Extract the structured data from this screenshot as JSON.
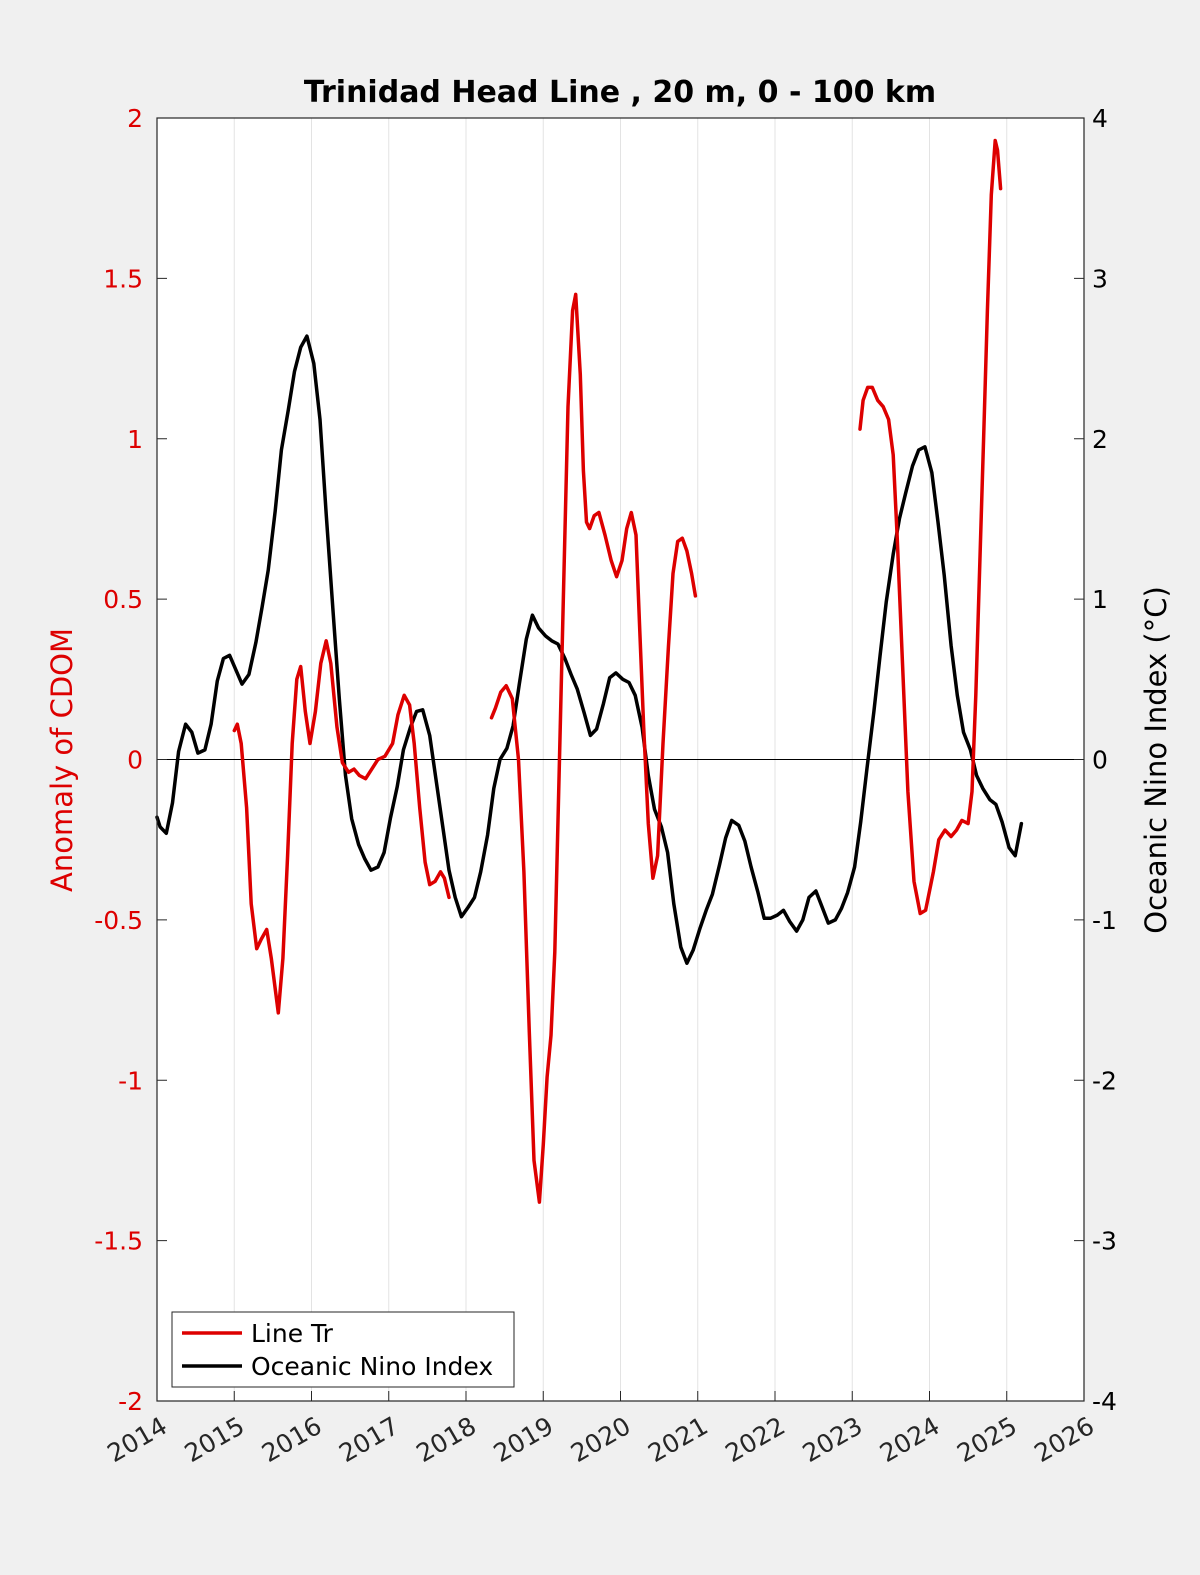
{
  "chart_data": {
    "type": "line",
    "title": "Trinidad Head Line , 20 m, 0 - 100 km",
    "xlim": [
      2014,
      2026
    ],
    "x_ticks": [
      "2014",
      "2015",
      "2016",
      "2017",
      "2018",
      "2019",
      "2020",
      "2021",
      "2022",
      "2023",
      "2024",
      "2025",
      "2026"
    ],
    "y_left": {
      "label": "Anomaly of CDOM",
      "lim": [
        -2,
        2
      ],
      "ticks": [
        "-2",
        "-1.5",
        "-1",
        "-0.5",
        "0",
        "0.5",
        "1",
        "1.5",
        "2"
      ],
      "color": "#dd0000"
    },
    "y_right": {
      "label": "Oceanic Nino Index (°C)",
      "lim": [
        -4,
        4
      ],
      "ticks": [
        "-4",
        "-3",
        "-2",
        "-1",
        "0",
        "1",
        "2",
        "3",
        "4"
      ],
      "color": "#000000"
    },
    "grid": "vertical",
    "zero_line": true,
    "legend_position": "bottom-left",
    "series": [
      {
        "name": "Line Tr",
        "axis": "left",
        "color": "#dd0000",
        "segments": [
          [
            [
              2015.0,
              0.09
            ],
            [
              2015.04,
              0.11
            ],
            [
              2015.09,
              0.05
            ],
            [
              2015.16,
              -0.15
            ],
            [
              2015.22,
              -0.45
            ],
            [
              2015.29,
              -0.59
            ],
            [
              2015.35,
              -0.56
            ],
            [
              2015.42,
              -0.53
            ],
            [
              2015.48,
              -0.62
            ],
            [
              2015.57,
              -0.79
            ],
            [
              2015.63,
              -0.62
            ],
            [
              2015.69,
              -0.3
            ],
            [
              2015.75,
              0.05
            ],
            [
              2015.81,
              0.25
            ],
            [
              2015.86,
              0.29
            ],
            [
              2015.92,
              0.15
            ],
            [
              2015.98,
              0.05
            ],
            [
              2016.05,
              0.15
            ],
            [
              2016.12,
              0.3
            ],
            [
              2016.19,
              0.37
            ],
            [
              2016.25,
              0.3
            ],
            [
              2016.33,
              0.1
            ],
            [
              2016.4,
              -0.01
            ],
            [
              2016.48,
              -0.04
            ],
            [
              2016.55,
              -0.03
            ],
            [
              2016.62,
              -0.05
            ],
            [
              2016.7,
              -0.06
            ],
            [
              2016.78,
              -0.03
            ],
            [
              2016.86,
              0.0
            ],
            [
              2016.95,
              0.01
            ],
            [
              2017.05,
              0.05
            ],
            [
              2017.12,
              0.14
            ],
            [
              2017.2,
              0.2
            ],
            [
              2017.27,
              0.17
            ],
            [
              2017.33,
              0.05
            ],
            [
              2017.4,
              -0.15
            ],
            [
              2017.47,
              -0.32
            ],
            [
              2017.53,
              -0.39
            ],
            [
              2017.6,
              -0.38
            ],
            [
              2017.67,
              -0.35
            ],
            [
              2017.72,
              -0.37
            ],
            [
              2017.78,
              -0.43
            ]
          ],
          [
            [
              2018.33,
              0.13
            ],
            [
              2018.38,
              0.16
            ],
            [
              2018.45,
              0.21
            ],
            [
              2018.52,
              0.23
            ],
            [
              2018.6,
              0.19
            ],
            [
              2018.68,
              0.0
            ],
            [
              2018.75,
              -0.35
            ],
            [
              2018.82,
              -0.85
            ],
            [
              2018.88,
              -1.25
            ],
            [
              2018.95,
              -1.38
            ],
            [
              2019.0,
              -1.2
            ],
            [
              2019.05,
              -0.99
            ],
            [
              2019.1,
              -0.86
            ],
            [
              2019.15,
              -0.6
            ],
            [
              2019.2,
              -0.1
            ],
            [
              2019.27,
              0.6
            ],
            [
              2019.32,
              1.1
            ],
            [
              2019.38,
              1.4
            ],
            [
              2019.42,
              1.45
            ],
            [
              2019.48,
              1.2
            ],
            [
              2019.52,
              0.9
            ],
            [
              2019.56,
              0.74
            ],
            [
              2019.6,
              0.72
            ],
            [
              2019.66,
              0.76
            ],
            [
              2019.72,
              0.77
            ],
            [
              2019.8,
              0.7
            ],
            [
              2019.88,
              0.62
            ],
            [
              2019.95,
              0.57
            ],
            [
              2020.02,
              0.62
            ],
            [
              2020.08,
              0.72
            ],
            [
              2020.14,
              0.77
            ],
            [
              2020.2,
              0.7
            ],
            [
              2020.25,
              0.4
            ],
            [
              2020.3,
              0.1
            ],
            [
              2020.36,
              -0.2
            ],
            [
              2020.42,
              -0.37
            ],
            [
              2020.48,
              -0.3
            ],
            [
              2020.55,
              0.05
            ],
            [
              2020.62,
              0.35
            ],
            [
              2020.68,
              0.58
            ],
            [
              2020.74,
              0.68
            ],
            [
              2020.8,
              0.69
            ],
            [
              2020.86,
              0.65
            ],
            [
              2020.92,
              0.58
            ],
            [
              2020.97,
              0.51
            ]
          ],
          [
            [
              2023.1,
              1.03
            ],
            [
              2023.14,
              1.12
            ],
            [
              2023.2,
              1.16
            ],
            [
              2023.26,
              1.16
            ],
            [
              2023.33,
              1.12
            ],
            [
              2023.4,
              1.1
            ],
            [
              2023.47,
              1.06
            ],
            [
              2023.53,
              0.95
            ],
            [
              2023.58,
              0.7
            ],
            [
              2023.65,
              0.3
            ],
            [
              2023.72,
              -0.1
            ],
            [
              2023.8,
              -0.38
            ],
            [
              2023.88,
              -0.48
            ],
            [
              2023.95,
              -0.47
            ],
            [
              2024.05,
              -0.35
            ],
            [
              2024.12,
              -0.25
            ],
            [
              2024.2,
              -0.22
            ],
            [
              2024.28,
              -0.24
            ],
            [
              2024.35,
              -0.22
            ],
            [
              2024.42,
              -0.19
            ],
            [
              2024.5,
              -0.2
            ],
            [
              2024.55,
              -0.1
            ],
            [
              2024.6,
              0.2
            ],
            [
              2024.65,
              0.6
            ],
            [
              2024.7,
              1.0
            ],
            [
              2024.75,
              1.4
            ],
            [
              2024.8,
              1.76
            ],
            [
              2024.85,
              1.93
            ],
            [
              2024.88,
              1.9
            ],
            [
              2024.92,
              1.78
            ]
          ]
        ]
      },
      {
        "name": "Oceanic Nino Index",
        "axis": "right",
        "color": "#000000",
        "segments": [
          [
            [
              2014.0,
              -0.36
            ],
            [
              2014.04,
              -0.42
            ],
            [
              2014.12,
              -0.46
            ],
            [
              2014.2,
              -0.27
            ],
            [
              2014.28,
              0.05
            ],
            [
              2014.37,
              0.22
            ],
            [
              2014.45,
              0.17
            ],
            [
              2014.53,
              0.04
            ],
            [
              2014.62,
              0.06
            ],
            [
              2014.7,
              0.22
            ],
            [
              2014.78,
              0.49
            ],
            [
              2014.86,
              0.63
            ],
            [
              2014.94,
              0.65
            ],
            [
              2015.02,
              0.56
            ],
            [
              2015.1,
              0.47
            ],
            [
              2015.19,
              0.53
            ],
            [
              2015.28,
              0.73
            ],
            [
              2015.36,
              0.95
            ],
            [
              2015.44,
              1.18
            ],
            [
              2015.53,
              1.55
            ],
            [
              2015.61,
              1.93
            ],
            [
              2015.7,
              2.18
            ],
            [
              2015.78,
              2.42
            ],
            [
              2015.86,
              2.57
            ],
            [
              2015.94,
              2.64
            ],
            [
              2016.03,
              2.47
            ],
            [
              2016.11,
              2.12
            ],
            [
              2016.19,
              1.53
            ],
            [
              2016.28,
              0.92
            ],
            [
              2016.36,
              0.38
            ],
            [
              2016.44,
              -0.1
            ],
            [
              2016.52,
              -0.37
            ],
            [
              2016.61,
              -0.53
            ],
            [
              2016.69,
              -0.62
            ],
            [
              2016.77,
              -0.69
            ],
            [
              2016.86,
              -0.67
            ],
            [
              2016.94,
              -0.58
            ],
            [
              2017.02,
              -0.37
            ],
            [
              2017.11,
              -0.17
            ],
            [
              2017.19,
              0.06
            ],
            [
              2017.28,
              0.2
            ],
            [
              2017.36,
              0.3
            ],
            [
              2017.44,
              0.31
            ],
            [
              2017.53,
              0.15
            ],
            [
              2017.61,
              -0.12
            ],
            [
              2017.7,
              -0.42
            ],
            [
              2017.78,
              -0.69
            ],
            [
              2017.86,
              -0.86
            ],
            [
              2017.94,
              -0.98
            ],
            [
              2018.03,
              -0.92
            ],
            [
              2018.11,
              -0.86
            ],
            [
              2018.19,
              -0.7
            ],
            [
              2018.28,
              -0.47
            ],
            [
              2018.36,
              -0.18
            ],
            [
              2018.44,
              0.0
            ],
            [
              2018.53,
              0.07
            ],
            [
              2018.61,
              0.21
            ],
            [
              2018.69,
              0.47
            ],
            [
              2018.78,
              0.75
            ],
            [
              2018.86,
              0.9
            ],
            [
              2018.94,
              0.82
            ],
            [
              2019.03,
              0.77
            ],
            [
              2019.11,
              0.74
            ],
            [
              2019.19,
              0.72
            ],
            [
              2019.28,
              0.63
            ],
            [
              2019.36,
              0.53
            ],
            [
              2019.44,
              0.44
            ],
            [
              2019.53,
              0.29
            ],
            [
              2019.61,
              0.15
            ],
            [
              2019.69,
              0.19
            ],
            [
              2019.78,
              0.35
            ],
            [
              2019.86,
              0.51
            ],
            [
              2019.94,
              0.54
            ],
            [
              2020.03,
              0.5
            ],
            [
              2020.11,
              0.48
            ],
            [
              2020.19,
              0.4
            ],
            [
              2020.28,
              0.2
            ],
            [
              2020.36,
              -0.1
            ],
            [
              2020.44,
              -0.31
            ],
            [
              2020.53,
              -0.42
            ],
            [
              2020.61,
              -0.58
            ],
            [
              2020.69,
              -0.9
            ],
            [
              2020.78,
              -1.17
            ],
            [
              2020.86,
              -1.27
            ],
            [
              2020.94,
              -1.19
            ],
            [
              2021.03,
              -1.05
            ],
            [
              2021.11,
              -0.94
            ],
            [
              2021.19,
              -0.84
            ],
            [
              2021.28,
              -0.66
            ],
            [
              2021.36,
              -0.49
            ],
            [
              2021.44,
              -0.38
            ],
            [
              2021.53,
              -0.41
            ],
            [
              2021.61,
              -0.51
            ],
            [
              2021.69,
              -0.67
            ],
            [
              2021.78,
              -0.83
            ],
            [
              2021.86,
              -0.99
            ],
            [
              2021.94,
              -0.99
            ],
            [
              2022.03,
              -0.97
            ],
            [
              2022.11,
              -0.94
            ],
            [
              2022.19,
              -1.01
            ],
            [
              2022.28,
              -1.07
            ],
            [
              2022.36,
              -1.0
            ],
            [
              2022.44,
              -0.86
            ],
            [
              2022.53,
              -0.82
            ],
            [
              2022.61,
              -0.92
            ],
            [
              2022.69,
              -1.02
            ],
            [
              2022.78,
              -1.0
            ],
            [
              2022.86,
              -0.93
            ],
            [
              2022.94,
              -0.83
            ],
            [
              2023.03,
              -0.67
            ],
            [
              2023.11,
              -0.39
            ],
            [
              2023.19,
              -0.06
            ],
            [
              2023.28,
              0.3
            ],
            [
              2023.36,
              0.65
            ],
            [
              2023.44,
              0.98
            ],
            [
              2023.53,
              1.28
            ],
            [
              2023.61,
              1.5
            ],
            [
              2023.69,
              1.66
            ],
            [
              2023.78,
              1.83
            ],
            [
              2023.86,
              1.93
            ],
            [
              2023.94,
              1.95
            ],
            [
              2024.03,
              1.79
            ],
            [
              2024.11,
              1.48
            ],
            [
              2024.19,
              1.15
            ],
            [
              2024.28,
              0.71
            ],
            [
              2024.36,
              0.4
            ],
            [
              2024.44,
              0.17
            ],
            [
              2024.53,
              0.06
            ],
            [
              2024.61,
              -0.1
            ],
            [
              2024.69,
              -0.18
            ],
            [
              2024.78,
              -0.25
            ],
            [
              2024.86,
              -0.28
            ],
            [
              2024.94,
              -0.39
            ],
            [
              2025.03,
              -0.55
            ],
            [
              2025.11,
              -0.6
            ],
            [
              2025.19,
              -0.4
            ]
          ]
        ]
      }
    ]
  }
}
